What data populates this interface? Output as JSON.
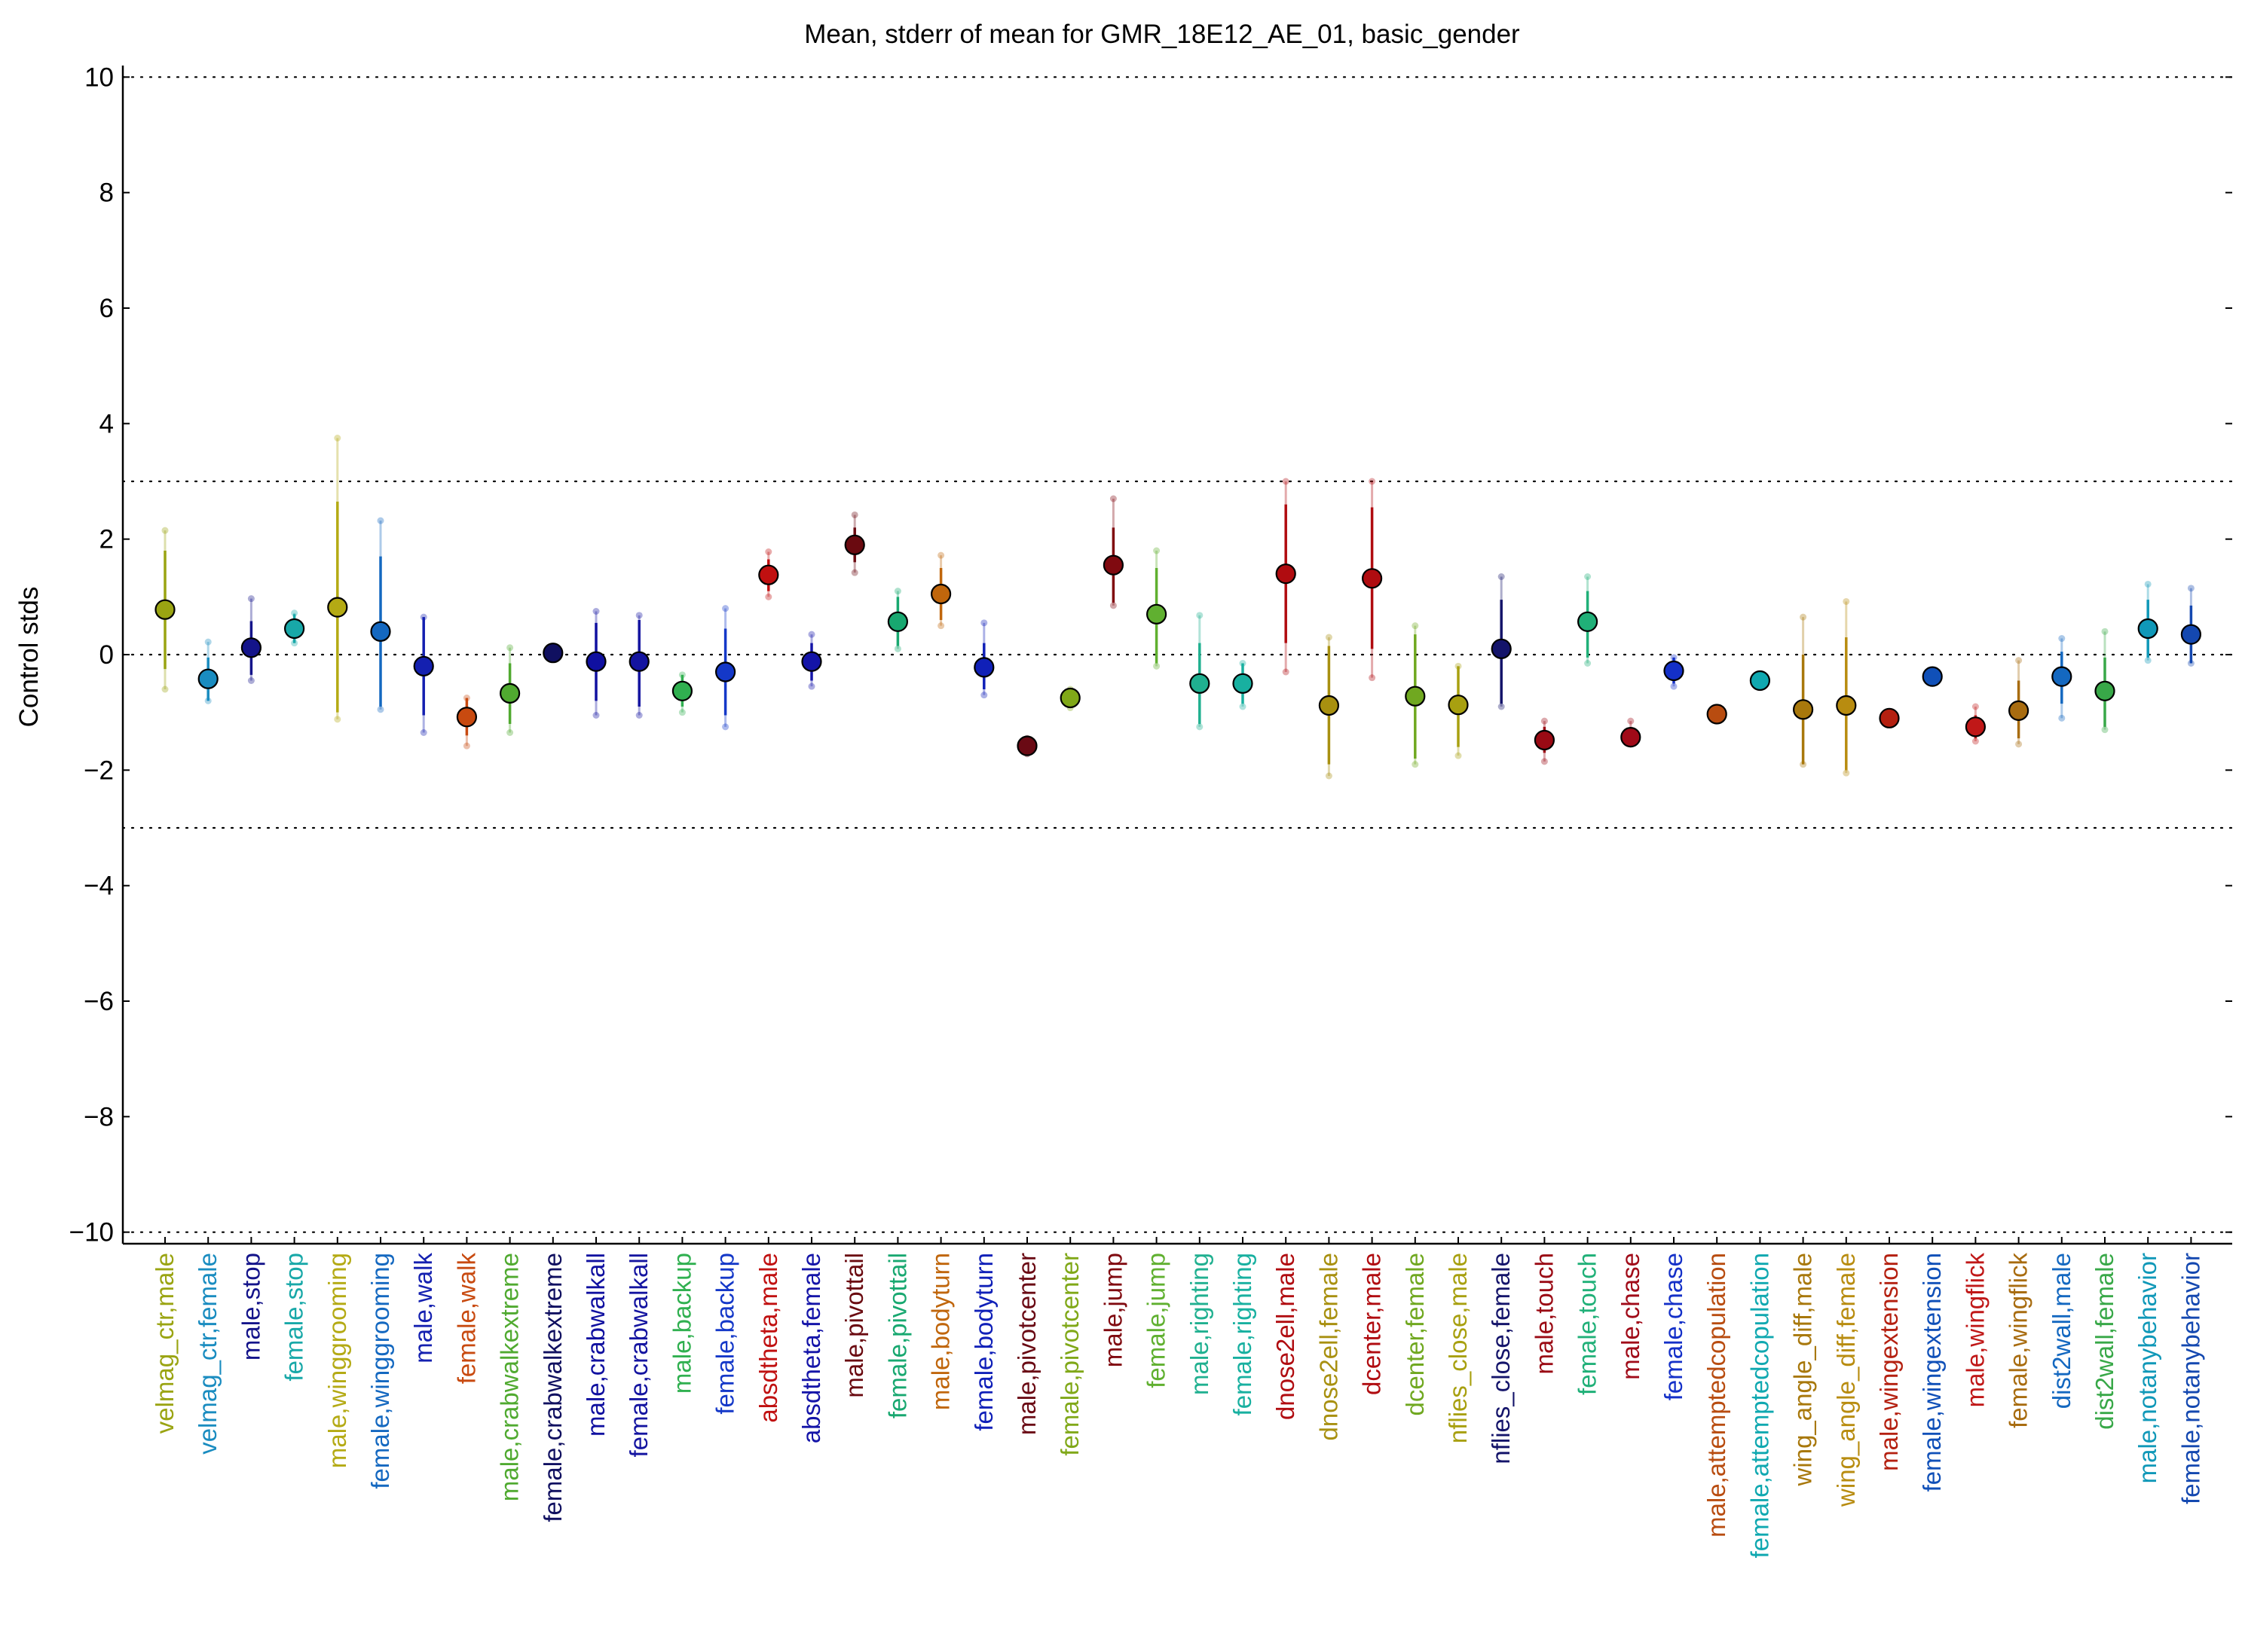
{
  "chart_data": {
    "type": "scatter",
    "title": "Mean, stderr of mean for GMR_18E12_AE_01, basic_gender",
    "xlabel": "",
    "ylabel": "Control stds",
    "ylim": [
      -10.2,
      10.2
    ],
    "yticks": [
      10,
      8,
      6,
      4,
      2,
      0,
      -2,
      -4,
      -6,
      -8,
      -10
    ],
    "ytick_labels": [
      "10",
      "8",
      "6",
      "4",
      "2",
      "0",
      "−2",
      "−4",
      "−6",
      "−8",
      "−10"
    ],
    "reference_lines": [
      10,
      3,
      0,
      -3,
      -10
    ],
    "grid": false,
    "legend": "none",
    "points": [
      {
        "label": "velmag_ctr,male",
        "color": "#9aa412",
        "mean": 0.78,
        "err_low": -0.25,
        "err_high": 1.8,
        "extra_low": -0.6,
        "extra_high": 2.15
      },
      {
        "label": "velmag_ctr,female",
        "color": "#1a8cc0",
        "mean": -0.42,
        "err_low": -0.8,
        "err_high": -0.05,
        "extra_low": -0.8,
        "extra_high": 0.22
      },
      {
        "label": "male,stop",
        "color": "#14148a",
        "mean": 0.12,
        "err_low": -0.35,
        "err_high": 0.58,
        "extra_low": -0.45,
        "extra_high": 0.97
      },
      {
        "label": "female,stop",
        "color": "#18a8a8",
        "mean": 0.45,
        "err_low": 0.2,
        "err_high": 0.7,
        "extra_low": 0.2,
        "extra_high": 0.72
      },
      {
        "label": "male,winggrooming",
        "color": "#b4aa14",
        "mean": 0.82,
        "err_low": -1.0,
        "err_high": 2.65,
        "extra_low": -1.12,
        "extra_high": 3.75
      },
      {
        "label": "female,winggrooming",
        "color": "#1468c0",
        "mean": 0.4,
        "err_low": -0.9,
        "err_high": 1.7,
        "extra_low": -0.95,
        "extra_high": 2.32
      },
      {
        "label": "male,walk",
        "color": "#1420b0",
        "mean": -0.2,
        "err_low": -1.05,
        "err_high": 0.65,
        "extra_low": -1.35,
        "extra_high": 0.65
      },
      {
        "label": "female,walk",
        "color": "#c84a10",
        "mean": -1.08,
        "err_low": -1.4,
        "err_high": -0.75,
        "extra_low": -1.58,
        "extra_high": -0.75
      },
      {
        "label": "male,crabwalkextreme",
        "color": "#50aa30",
        "mean": -0.67,
        "err_low": -1.2,
        "err_high": -0.15,
        "extra_low": -1.35,
        "extra_high": 0.12
      },
      {
        "label": "female,crabwalkextreme",
        "color": "#101060",
        "mean": 0.03,
        "err_low": -0.05,
        "err_high": 0.1,
        "extra_low": -0.05,
        "extra_high": 0.1
      },
      {
        "label": "male,crabwalkall",
        "color": "#1010a0",
        "mean": -0.12,
        "err_low": -0.8,
        "err_high": 0.55,
        "extra_low": -1.05,
        "extra_high": 0.75
      },
      {
        "label": "female,crabwalkall",
        "color": "#1414a0",
        "mean": -0.12,
        "err_low": -0.9,
        "err_high": 0.6,
        "extra_low": -1.05,
        "extra_high": 0.68
      },
      {
        "label": "male,backup",
        "color": "#30b050",
        "mean": -0.63,
        "err_low": -0.9,
        "err_high": -0.35,
        "extra_low": -1.0,
        "extra_high": -0.35
      },
      {
        "label": "female,backup",
        "color": "#1438c8",
        "mean": -0.3,
        "err_low": -1.05,
        "err_high": 0.45,
        "extra_low": -1.25,
        "extra_high": 0.8
      },
      {
        "label": "absdtheta,male",
        "color": "#c01010",
        "mean": 1.38,
        "err_low": 1.1,
        "err_high": 1.65,
        "extra_low": 1.0,
        "extra_high": 1.78
      },
      {
        "label": "absdtheta,female",
        "color": "#1414a8",
        "mean": -0.12,
        "err_low": -0.45,
        "err_high": 0.2,
        "extra_low": -0.55,
        "extra_high": 0.35
      },
      {
        "label": "male,pivottail",
        "color": "#6a0a10",
        "mean": 1.9,
        "err_low": 1.6,
        "err_high": 2.2,
        "extra_low": 1.42,
        "extra_high": 2.42
      },
      {
        "label": "female,pivottail",
        "color": "#18a870",
        "mean": 0.57,
        "err_low": 0.15,
        "err_high": 1.0,
        "extra_low": 0.1,
        "extra_high": 1.1
      },
      {
        "label": "male,bodyturn",
        "color": "#c0660c",
        "mean": 1.05,
        "err_low": 0.6,
        "err_high": 1.5,
        "extra_low": 0.5,
        "extra_high": 1.72
      },
      {
        "label": "female,bodyturn",
        "color": "#1020b8",
        "mean": -0.22,
        "err_low": -0.6,
        "err_high": 0.2,
        "extra_low": -0.7,
        "extra_high": 0.55
      },
      {
        "label": "male,pivotcenter",
        "color": "#6a0a14",
        "mean": -1.58,
        "err_low": -1.72,
        "err_high": -1.45,
        "extra_low": -1.72,
        "extra_high": -1.45
      },
      {
        "label": "female,pivotcenter",
        "color": "#80a818",
        "mean": -0.75,
        "err_low": -0.92,
        "err_high": -0.6,
        "extra_low": -0.92,
        "extra_high": -0.6
      },
      {
        "label": "male,jump",
        "color": "#800a10",
        "mean": 1.55,
        "err_low": 0.9,
        "err_high": 2.2,
        "extra_low": 0.85,
        "extra_high": 2.7
      },
      {
        "label": "female,jump",
        "color": "#60b030",
        "mean": 0.7,
        "err_low": -0.15,
        "err_high": 1.5,
        "extra_low": -0.2,
        "extra_high": 1.8
      },
      {
        "label": "male,righting",
        "color": "#20b090",
        "mean": -0.5,
        "err_low": -1.2,
        "err_high": 0.2,
        "extra_low": -1.25,
        "extra_high": 0.68
      },
      {
        "label": "female,righting",
        "color": "#18b0a0",
        "mean": -0.5,
        "err_low": -0.85,
        "err_high": -0.15,
        "extra_low": -0.9,
        "extra_high": -0.15
      },
      {
        "label": "dnose2ell,male",
        "color": "#b00c10",
        "mean": 1.4,
        "err_low": 0.2,
        "err_high": 2.6,
        "extra_low": -0.3,
        "extra_high": 3.0
      },
      {
        "label": "dnose2ell,female",
        "color": "#a89010",
        "mean": -0.88,
        "err_low": -1.9,
        "err_high": 0.15,
        "extra_low": -2.1,
        "extra_high": 0.3
      },
      {
        "label": "dcenter,male",
        "color": "#b00c10",
        "mean": 1.32,
        "err_low": 0.1,
        "err_high": 2.55,
        "extra_low": -0.4,
        "extra_high": 3.0
      },
      {
        "label": "dcenter,female",
        "color": "#70a820",
        "mean": -0.72,
        "err_low": -1.8,
        "err_high": 0.35,
        "extra_low": -1.9,
        "extra_high": 0.5
      },
      {
        "label": "nflies_close,male",
        "color": "#a8a010",
        "mean": -0.87,
        "err_low": -1.6,
        "err_high": -0.2,
        "extra_low": -1.75,
        "extra_high": -0.2
      },
      {
        "label": "nflies_close,female",
        "color": "#14146a",
        "mean": 0.1,
        "err_low": -0.85,
        "err_high": 0.95,
        "extra_low": -0.9,
        "extra_high": 1.35
      },
      {
        "label": "male,touch",
        "color": "#9a0a14",
        "mean": -1.48,
        "err_low": -1.7,
        "err_high": -1.25,
        "extra_low": -1.85,
        "extra_high": -1.15
      },
      {
        "label": "female,touch",
        "color": "#20b078",
        "mean": 0.57,
        "err_low": -0.05,
        "err_high": 1.1,
        "extra_low": -0.15,
        "extra_high": 1.35
      },
      {
        "label": "male,chase",
        "color": "#a00a18",
        "mean": -1.43,
        "err_low": -1.55,
        "err_high": -1.3,
        "extra_low": -1.55,
        "extra_high": -1.15
      },
      {
        "label": "female,chase",
        "color": "#1430c8",
        "mean": -0.28,
        "err_low": -0.5,
        "err_high": -0.05,
        "extra_low": -0.55,
        "extra_high": -0.05
      },
      {
        "label": "male,attemptedcopulation",
        "color": "#b84c10",
        "mean": -1.03,
        "err_low": -1.1,
        "err_high": -0.95,
        "extra_low": -1.1,
        "extra_high": -0.95
      },
      {
        "label": "female,attemptedcopulation",
        "color": "#10a8b0",
        "mean": -0.45,
        "err_low": -0.55,
        "err_high": -0.35,
        "extra_low": -0.55,
        "extra_high": -0.35
      },
      {
        "label": "wing_angle_diff,male",
        "color": "#a8780c",
        "mean": -0.95,
        "err_low": -1.9,
        "err_high": 0.0,
        "extra_low": -1.9,
        "extra_high": 0.65
      },
      {
        "label": "wing_angle_diff,female",
        "color": "#b88c10",
        "mean": -0.88,
        "err_low": -2.0,
        "err_high": 0.3,
        "extra_low": -2.05,
        "extra_high": 0.92
      },
      {
        "label": "male,wingextension",
        "color": "#b42010",
        "mean": -1.1,
        "err_low": -1.2,
        "err_high": -1.0,
        "extra_low": -1.2,
        "extra_high": -1.0
      },
      {
        "label": "female,wingextension",
        "color": "#1050b8",
        "mean": -0.38,
        "err_low": -0.45,
        "err_high": -0.3,
        "extra_low": -0.45,
        "extra_high": -0.3
      },
      {
        "label": "male,wingflick",
        "color": "#c01818",
        "mean": -1.25,
        "err_low": -1.45,
        "err_high": -1.05,
        "extra_low": -1.5,
        "extra_high": -0.9
      },
      {
        "label": "female,wingflick",
        "color": "#a86c10",
        "mean": -0.97,
        "err_low": -1.45,
        "err_high": -0.45,
        "extra_low": -1.55,
        "extra_high": -0.1
      },
      {
        "label": "dist2wall,male",
        "color": "#1468c0",
        "mean": -0.38,
        "err_low": -0.85,
        "err_high": 0.05,
        "extra_low": -1.1,
        "extra_high": 0.28
      },
      {
        "label": "dist2wall,female",
        "color": "#38a848",
        "mean": -0.63,
        "err_low": -1.25,
        "err_high": -0.05,
        "extra_low": -1.3,
        "extra_high": 0.4
      },
      {
        "label": "male,notanybehavior",
        "color": "#1098b8",
        "mean": 0.45,
        "err_low": -0.05,
        "err_high": 0.95,
        "extra_low": -0.1,
        "extra_high": 1.22
      },
      {
        "label": "female,notanybehavior",
        "color": "#1448b0",
        "mean": 0.35,
        "err_low": -0.15,
        "err_high": 0.85,
        "extra_low": -0.15,
        "extra_high": 1.15
      }
    ]
  }
}
